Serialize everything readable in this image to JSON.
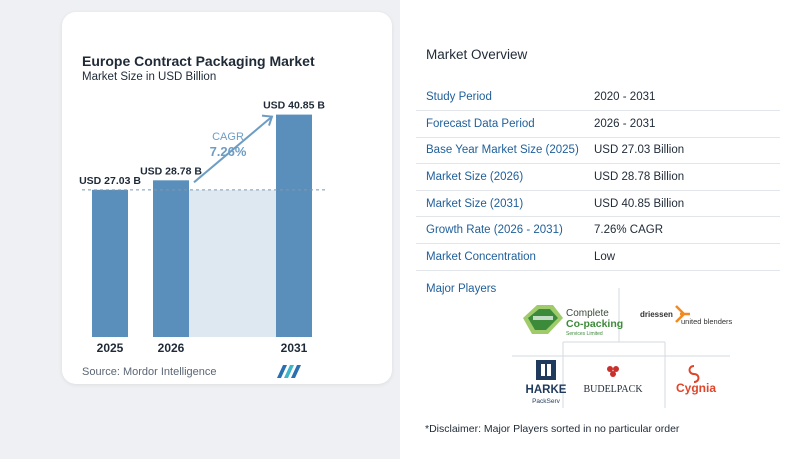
{
  "chart": {
    "title": "Europe Contract Packaging Market",
    "subtitle": "Market Size in USD Billion",
    "cagr_label": "CAGR",
    "cagr_value": "7.26%",
    "source": "Source:  Mordor Intelligence"
  },
  "chart_data": {
    "type": "bar",
    "title": "Europe Contract Packaging Market",
    "subtitle": "Market Size in USD Billion",
    "categories": [
      "2025",
      "2026",
      "2031"
    ],
    "values": [
      27.03,
      28.78,
      40.85
    ],
    "data_labels": [
      "USD 27.03 B",
      "USD 28.78 B",
      "USD 40.85 B"
    ],
    "ylim": [
      0,
      45
    ],
    "reference_line": 27.03,
    "colors": {
      "bar": "#5a8fbb",
      "shade": "#dde8f1",
      "arrow": "#6e9dc4",
      "accent": "#5a8fbb"
    }
  },
  "overview": {
    "title": "Market Overview",
    "rows": [
      {
        "key": "Study Period",
        "value": "2020 - 2031"
      },
      {
        "key": "Forecast Data Period",
        "value": "2026 - 2031"
      },
      {
        "key": "Base Year Market Size (2025)",
        "value": "USD 27.03 Billion"
      },
      {
        "key": "Market Size (2026)",
        "value": "USD 28.78 Billion"
      },
      {
        "key": "Market Size (2031)",
        "value": "USD 40.85 Billion"
      },
      {
        "key": "Growth Rate (2026 - 2031)",
        "value": "7.26% CAGR"
      },
      {
        "key": "Market Concentration",
        "value": "Low"
      }
    ]
  },
  "players": {
    "title": "Major Players",
    "logos": {
      "complete_line1": "Complete",
      "complete_line2": "Co-packing",
      "complete_line3": "Services Limited",
      "driessen_line1": "driessen",
      "driessen_line2": "united blenders",
      "harke_line1": "HARKE",
      "harke_line2": "PackServ",
      "budelpack": "BUDELPACK",
      "cygnia": "Cygnia"
    }
  },
  "disclaimer": "*Disclaimer: Major Players sorted in no particular order"
}
